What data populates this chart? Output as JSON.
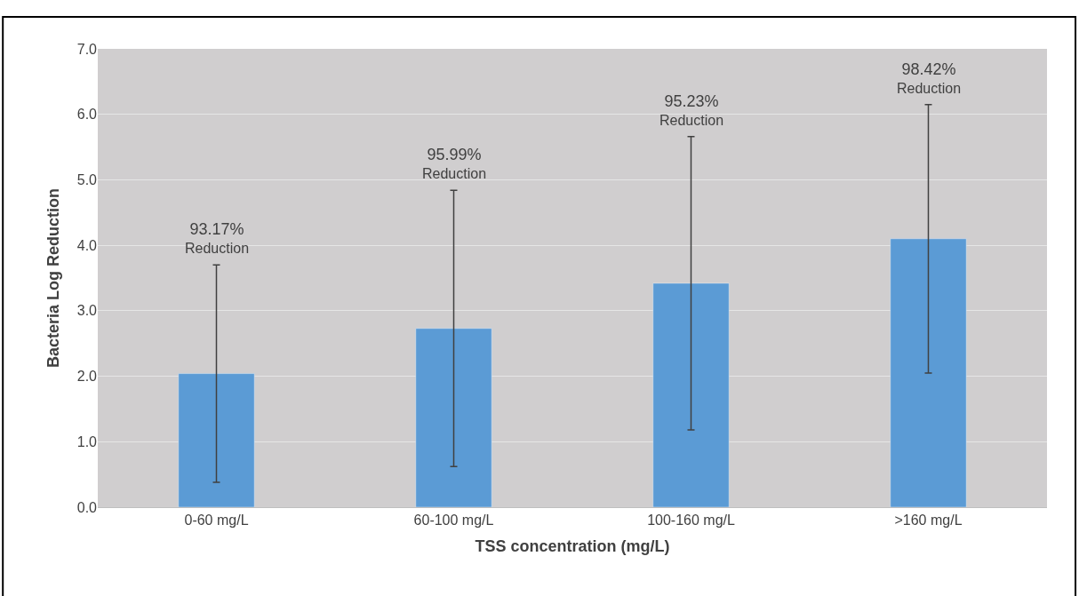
{
  "chart_data": {
    "type": "bar",
    "xlabel": "TSS concentration (mg/L)",
    "ylabel": "Bacteria Log Reduction",
    "categories": [
      "0-60 mg/L",
      "60-100 mg/L",
      "100-160 mg/L",
      ">160 mg/L"
    ],
    "values": [
      2.04,
      2.73,
      3.42,
      4.1
    ],
    "errors": [
      1.66,
      2.11,
      2.24,
      2.05
    ],
    "color": "#5b9bd5",
    "ylim": [
      0,
      7
    ],
    "yticks": [
      {
        "value": 0,
        "label": "0.0"
      },
      {
        "value": 1,
        "label": "1.0"
      },
      {
        "value": 2,
        "label": "2.0"
      },
      {
        "value": 3,
        "label": "3.0"
      },
      {
        "value": 4,
        "label": "4.0"
      },
      {
        "value": 5,
        "label": "5.0"
      },
      {
        "value": 6,
        "label": "6.0"
      },
      {
        "value": 7,
        "label": "7.0"
      }
    ],
    "grid": "y",
    "annotations": [
      "93.17%\nReduction",
      "95.99%\nReduction",
      "95.23%\nReduction",
      "98.42%\nReduction"
    ]
  }
}
